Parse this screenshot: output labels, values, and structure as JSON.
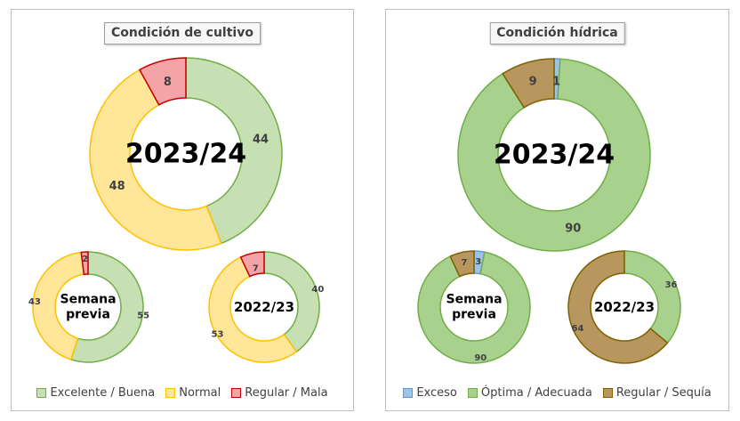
{
  "chart_data": [
    {
      "type": "donut",
      "title": "Condición  de cultivo",
      "legend_position": "bottom",
      "series": [
        {
          "name": "Excelente / Buena",
          "color": "#c6e0b4",
          "stroke": "#70ad47"
        },
        {
          "name": "Normal",
          "color": "#ffe699",
          "stroke": "#ffc000"
        },
        {
          "name": "Regular / Mala",
          "color": "#f4a3a6",
          "stroke": "#c00000"
        }
      ],
      "rings": [
        {
          "label": [
            "2023/24"
          ],
          "values": [
            44,
            48,
            8
          ],
          "value_labels": [
            "44",
            "48",
            "8"
          ]
        },
        {
          "label": [
            "Semana",
            "previa"
          ],
          "values": [
            55,
            43,
            2
          ],
          "value_labels": [
            "55",
            "43",
            "2"
          ]
        },
        {
          "label": [
            "2022/23"
          ],
          "values": [
            40,
            53,
            7
          ],
          "value_labels": [
            "40",
            "53",
            "7"
          ]
        }
      ]
    },
    {
      "type": "donut",
      "title": "Condición  hídrica",
      "legend_position": "bottom",
      "series": [
        {
          "name": "Exceso",
          "color": "#9dc3e6",
          "stroke": "#5b9bd5"
        },
        {
          "name": "Óptima / Adecuada",
          "color": "#a9d18e",
          "stroke": "#70ad47"
        },
        {
          "name": "Regular / Sequía",
          "color": "#b8975e",
          "stroke": "#7f6000"
        }
      ],
      "rings": [
        {
          "label": [
            "2023/24"
          ],
          "values": [
            1,
            90,
            9
          ],
          "value_labels": [
            "1",
            "90",
            "9"
          ]
        },
        {
          "label": [
            "Semana",
            "previa"
          ],
          "values": [
            3,
            90,
            7
          ],
          "value_labels": [
            "3",
            "90",
            "7"
          ]
        },
        {
          "label": [
            "2022/23"
          ],
          "values": [
            0,
            36,
            64
          ],
          "value_labels": [
            "",
            "36",
            "64"
          ]
        }
      ]
    }
  ]
}
